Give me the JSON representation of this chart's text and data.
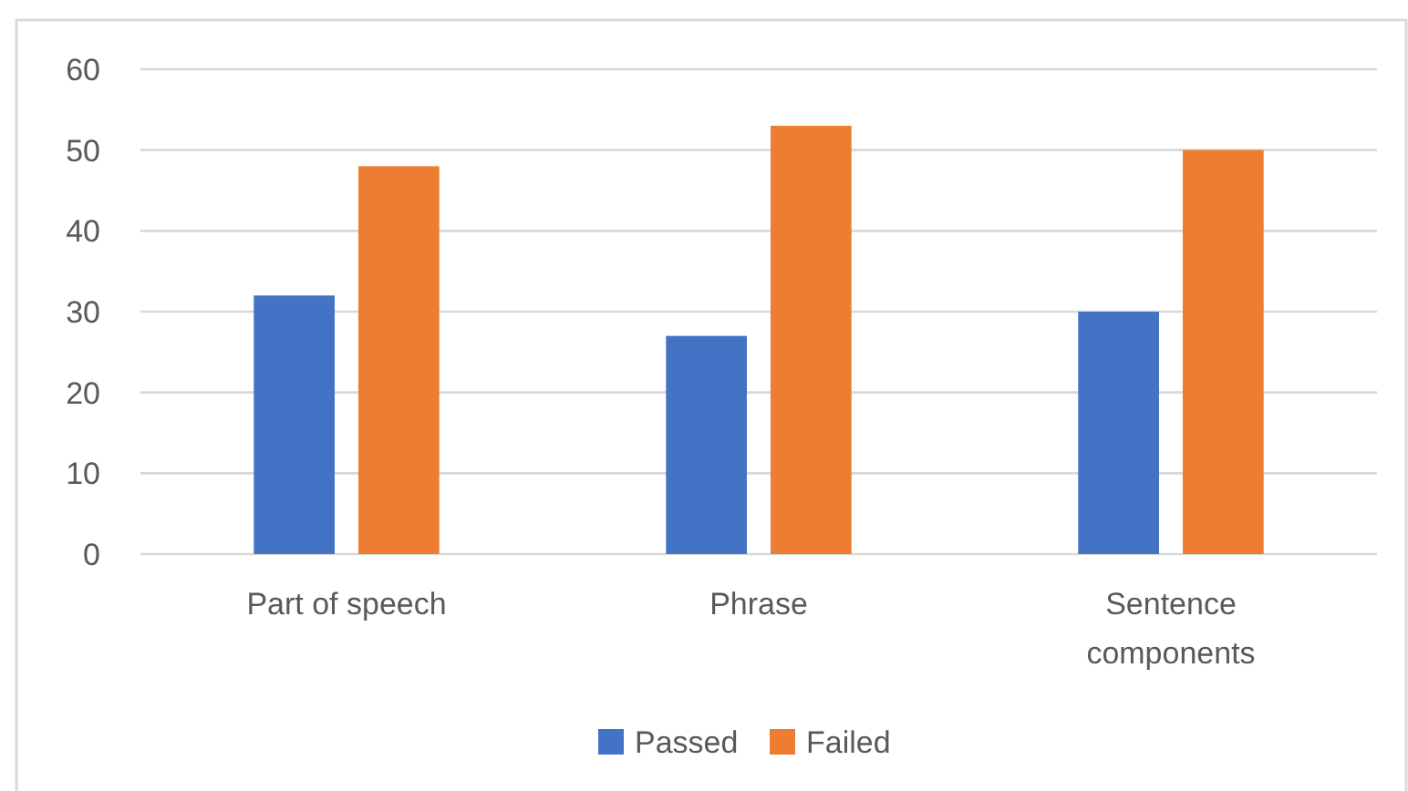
{
  "chart_data": {
    "type": "bar",
    "categories": [
      "Part of speech",
      "Phrase",
      "Sentence components"
    ],
    "series": [
      {
        "name": "Passed",
        "color": "#4472c4",
        "values": [
          32,
          27,
          30
        ]
      },
      {
        "name": "Failed",
        "color": "#ed7d31",
        "values": [
          48,
          53,
          50
        ]
      }
    ],
    "ylim": [
      0,
      60
    ],
    "yticks": [
      0,
      10,
      20,
      30,
      40,
      50,
      60
    ],
    "grid": "y",
    "legend": "bottom"
  }
}
